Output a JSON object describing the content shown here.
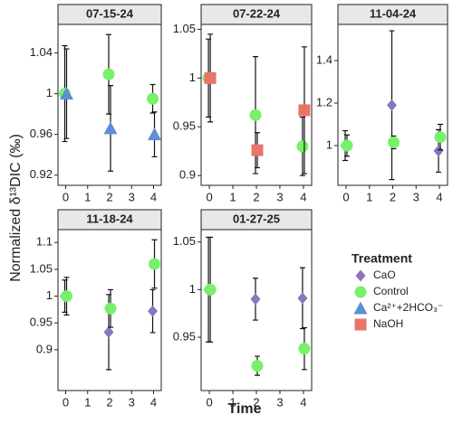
{
  "chart_data": [
    {
      "type": "scatter",
      "title": "07-15-24",
      "x": [
        0,
        2,
        4
      ],
      "xlim": [
        -0.35,
        4.35
      ],
      "xticks": [
        0,
        1,
        2,
        3,
        4
      ],
      "ylim": [
        0.91,
        1.068
      ],
      "yticks": [
        0.92,
        0.96,
        1.0,
        1.04
      ],
      "series": [
        {
          "name": "Control",
          "values": [
            1.0,
            1.019,
            0.995
          ],
          "errors": [
            0.047,
            0.039,
            0.014
          ]
        },
        {
          "name": "Ca²⁺+2HCO₃⁻",
          "values": [
            1.0,
            0.966,
            0.96
          ],
          "errors": [
            0.044,
            0.042,
            0.022
          ]
        }
      ]
    },
    {
      "type": "scatter",
      "title": "07-22-24",
      "x": [
        0,
        2,
        4
      ],
      "xlim": [
        -0.35,
        4.35
      ],
      "xticks": [
        0,
        1,
        2,
        3,
        4
      ],
      "ylim": [
        0.89,
        1.055
      ],
      "yticks": [
        0.9,
        0.95,
        1.0,
        1.05
      ],
      "series": [
        {
          "name": "Control",
          "values": [
            1.0,
            0.962,
            0.93
          ],
          "errors": [
            0.04,
            0.06,
            0.03
          ]
        },
        {
          "name": "NaOH",
          "values": [
            1.0,
            0.926,
            0.967
          ],
          "errors": [
            0.045,
            0.018,
            0.065
          ]
        }
      ]
    },
    {
      "type": "scatter",
      "title": "11-04-24",
      "x": [
        0,
        2,
        4
      ],
      "xlim": [
        -0.35,
        4.35
      ],
      "xticks": [
        0,
        1,
        2,
        3,
        4
      ],
      "ylim": [
        0.813,
        1.57
      ],
      "yticks": [
        1.0,
        1.2,
        1.4
      ],
      "series": [
        {
          "name": "CaO",
          "values": [
            1.0,
            1.19,
            0.975
          ],
          "errors": [
            0.07,
            0.35,
            0.1
          ]
        },
        {
          "name": "Control",
          "values": [
            1.0,
            1.015,
            1.04
          ],
          "errors": [
            0.05,
            0.03,
            0.06
          ]
        }
      ]
    },
    {
      "type": "scatter",
      "title": "11-18-24",
      "x": [
        0,
        2,
        4
      ],
      "xlim": [
        -0.35,
        4.35
      ],
      "xticks": [
        0,
        1,
        2,
        3,
        4
      ],
      "ylim": [
        0.824,
        1.124
      ],
      "yticks": [
        0.9,
        0.95,
        1.0,
        1.05,
        1.1
      ],
      "series": [
        {
          "name": "CaO",
          "values": [
            1.0,
            0.933,
            0.972
          ],
          "errors": [
            0.03,
            0.07,
            0.04
          ]
        },
        {
          "name": "Control",
          "values": [
            1.0,
            0.977,
            1.06
          ],
          "errors": [
            0.035,
            0.035,
            0.045
          ]
        }
      ]
    },
    {
      "type": "scatter",
      "title": "01-27-25",
      "x": [
        0,
        2,
        4
      ],
      "xlim": [
        -0.35,
        4.35
      ],
      "xticks": [
        0,
        1,
        2,
        3,
        4
      ],
      "ylim": [
        0.894,
        1.063
      ],
      "yticks": [
        0.95,
        1.0,
        1.05
      ],
      "series": [
        {
          "name": "CaO",
          "values": [
            1.0,
            0.99,
            0.991
          ],
          "errors": [
            0.055,
            0.022,
            0.032
          ]
        },
        {
          "name": "Control",
          "values": [
            1.0,
            0.92,
            0.938
          ],
          "errors": [
            0.055,
            0.01,
            0.022
          ]
        }
      ]
    }
  ],
  "x_label": "Time",
  "y_label": "Normalized δ¹³DIC (‰)",
  "legend": {
    "title": "Treatment",
    "items": [
      {
        "name": "CaO",
        "color": "#8b75bd",
        "marker": "diamond"
      },
      {
        "name": "Control",
        "color": "#77f06a",
        "marker": "circle"
      },
      {
        "name": "Ca²⁺+2HCO₃⁻",
        "color": "#5b8fd6",
        "marker": "triangle"
      },
      {
        "name": "NaOH",
        "color": "#e9756a",
        "marker": "square"
      }
    ]
  }
}
